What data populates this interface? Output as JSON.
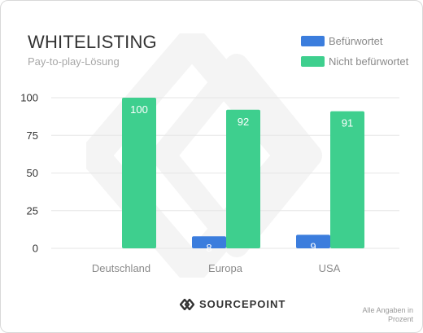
{
  "header": {
    "title": "WHITELISTING",
    "subtitle": "Pay-to-play-Lösung"
  },
  "brand": {
    "name": "SOURCEPOINT",
    "icon": "sourcepoint-logo-icon"
  },
  "footnote": "Alle Angaben in Prozent",
  "colors": {
    "befuerwortet": "#3b7ddd",
    "nicht_befuerwortet": "#3ecf8e",
    "gridline": "#e6e6e6",
    "watermark": "#f4f4f4"
  },
  "chart_data": {
    "type": "bar",
    "title": "WHITELISTING",
    "subtitle": "Pay-to-play-Lösung",
    "categories": [
      "Deutschland",
      "Europa",
      "USA"
    ],
    "series": [
      {
        "name": "Befürwortet",
        "values": [
          0,
          8,
          9
        ],
        "labels": [
          "",
          "8",
          "9"
        ]
      },
      {
        "name": "Nicht befürwortet",
        "values": [
          100,
          92,
          91
        ],
        "labels": [
          "100",
          "92",
          "91"
        ]
      }
    ],
    "y_ticks": [
      "0",
      "25",
      "50",
      "75",
      "100"
    ],
    "ylim": [
      0,
      100
    ],
    "grid": true,
    "legend_position": "top-right"
  }
}
